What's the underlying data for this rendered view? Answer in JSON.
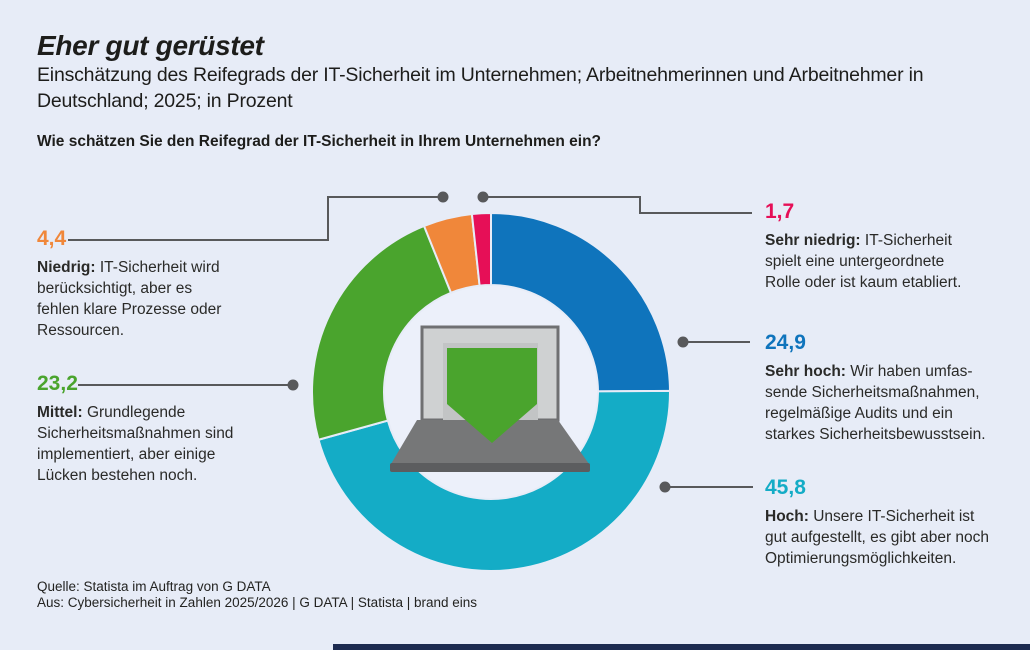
{
  "header": {
    "title": "Eher gut gerüstet",
    "subtitle": "Einschätzung des Reifegrads der IT-Sicherheit im Unternehmen; Arbeitnehmerinnen und Arbeitnehmer in Deutschland; 2025; in Prozent",
    "question": "Wie schätzen Sie den Reifegrad der IT-Sicherheit in Ihrem Unternehmen ein?"
  },
  "chart_data": {
    "type": "pie",
    "subtype": "donut",
    "title": "Wie schätzen Sie den Reifegrad der IT-Sicherheit in Ihrem Unternehmen ein?",
    "unit": "Prozent",
    "start_angle_deg": 0,
    "direction": "clockwise",
    "center_icon": "laptop-with-green-shield",
    "slices": [
      {
        "id": "sehr-hoch",
        "label": "Sehr hoch",
        "value": 24.9,
        "display": "24,9",
        "color": "#0f74bc",
        "description": "Sehr hoch: Wir haben umfassende Sicherheitsmaßnahmen, regelmäßige Audits und ein starkes Sicherheitsbewusstsein."
      },
      {
        "id": "hoch",
        "label": "Hoch",
        "value": 45.8,
        "display": "45,8",
        "color": "#14acc6",
        "description": "Hoch: Unsere IT-Sicherheit ist gut aufgestellt, es gibt aber noch Optimierungsmöglichkeiten."
      },
      {
        "id": "mittel",
        "label": "Mittel",
        "value": 23.2,
        "display": "23,2",
        "color": "#4aa42d",
        "description": "Mittel: Grundlegende Sicherheitsmaßnahmen sind implementiert, aber einige Lücken bestehen noch."
      },
      {
        "id": "niedrig",
        "label": "Niedrig",
        "value": 4.4,
        "display": "4,4",
        "color": "#f0873a",
        "description": "Niedrig: IT-Sicherheit wird berücksichtigt, aber es fehlen klare Prozesse oder Ressourcen."
      },
      {
        "id": "sehr-niedrig",
        "label": "Sehr niedrig",
        "value": 1.7,
        "display": "1,7",
        "color": "#e60f57",
        "description": "Sehr niedrig: IT-Sicherheit spielt eine untergeordnete Rolle oder ist kaum etabliert."
      }
    ]
  },
  "callouts": [
    {
      "value": "4,4",
      "color": "#f0873a",
      "term": "Niedrig:",
      "text": "IT-Sicherheit wird\nberücksichtigt, aber es\nfehlen klare Prozesse oder\nRessourcen."
    },
    {
      "value": "23,2",
      "color": "#4aa42d",
      "term": "Mittel:",
      "text": "Grundlegende\nSicherheitsmaßnahmen sind\nimplementiert, aber einige\nLücken bestehen noch."
    },
    {
      "value": "1,7",
      "color": "#e60f57",
      "term": "Sehr niedrig:",
      "text": "IT-Sicherheit\nspielt eine untergeordnete\nRolle oder ist kaum etabliert."
    },
    {
      "value": "24,9",
      "color": "#0f74bc",
      "term": "Sehr hoch:",
      "text": "Wir haben umfas-\nsende Sicherheitsmaßnahmen,\nregelmäßige Audits und ein\nstarkes Sicherheitsbewusstsein."
    },
    {
      "value": "45,8",
      "color": "#14acc6",
      "term": "Hoch:",
      "text": "Unsere IT-Sicherheit ist\ngut aufgestellt, es gibt aber noch\nOptimierungsmöglichkeiten."
    }
  ],
  "source": {
    "line1": "Quelle: Statista im Auftrag von G DATA",
    "line2": "Aus: Cybersicherheit in Zahlen 2025/2026 | G DATA | Statista | brand eins"
  },
  "colors": {
    "background": "#e7ecf7",
    "hole": "#ecf0fa",
    "text": "#1d1d1b",
    "leader_line": "#58595b",
    "footer_bar": "#1d2b50",
    "laptop_bezel": "#cfd1d2",
    "laptop_bezel_border": "#6f7072",
    "laptop_screen_inner": "#c2c4c5",
    "laptop_deck": "#767778",
    "laptop_deck_edge": "#5c5d5f",
    "shield_green": "#4aa42d"
  }
}
